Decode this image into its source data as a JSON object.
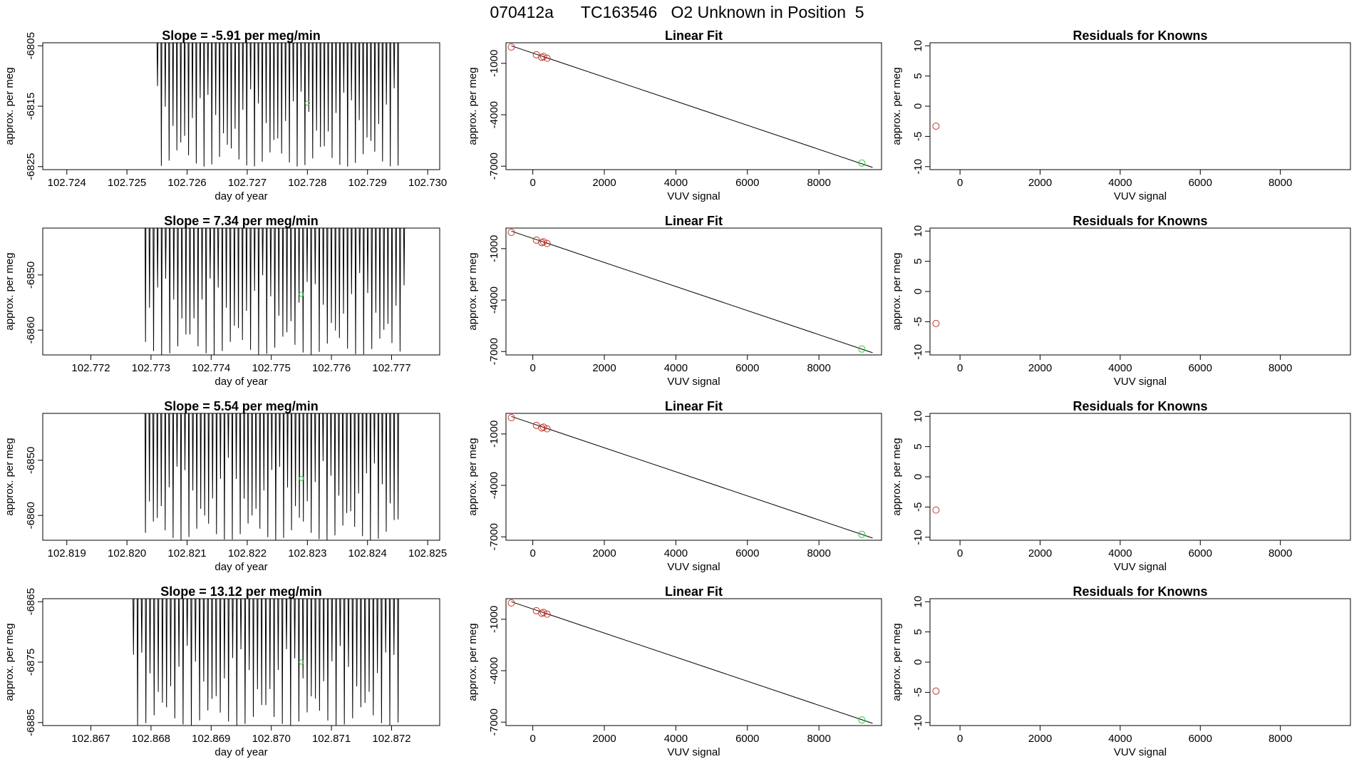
{
  "page": {
    "title_parts": [
      "070412a",
      "TC163546",
      "O2 Unknown in Position  5"
    ],
    "colors": {
      "axis": "#000000",
      "known": "#c0392b",
      "unknown": "#2ecc40",
      "trace": "#000000"
    }
  },
  "chart_data": [
    {
      "type": "line",
      "row": 0,
      "panel": "time-series",
      "title_prefix": "Slope = ",
      "slope": "-5.91",
      "title_suffix": " per meg/min",
      "xlabel": "day of year",
      "ylabel": "approx. per meg",
      "xlim": [
        102.7236,
        102.7302
      ],
      "ylim": [
        -6825.5,
        -6804.5
      ],
      "xticks": [
        "102.724",
        "102.725",
        "102.726",
        "102.727",
        "102.728",
        "102.729",
        "102.730"
      ],
      "yticks": [
        "-6805",
        "-6815",
        "-6825"
      ],
      "trace_start": 102.7255,
      "trace_end": 102.7295,
      "trace_cycles": 62,
      "trace_ymin": -6825,
      "trace_ymax": -6804.5,
      "marker": {
        "x": 102.728,
        "y": -6814.5
      }
    },
    {
      "type": "scatter",
      "row": 0,
      "panel": "linear-fit",
      "title": "Linear Fit",
      "xlabel": "VUV signal",
      "ylabel": "approx. per meg",
      "xlim": [
        -750,
        9750
      ],
      "ylim": [
        -7200,
        200
      ],
      "xticks": [
        "0",
        "2000",
        "4000",
        "6000",
        "8000"
      ],
      "yticks": [
        "-1000",
        "-4000",
        "-7000"
      ],
      "known_points": {
        "x": [
          -600,
          100,
          250,
          300,
          400
        ],
        "y": [
          -50,
          -500,
          -650,
          -600,
          -700
        ]
      },
      "unknown_point": {
        "x": 9200,
        "y": -6814
      },
      "fit_line": {
        "x": [
          -600,
          9500
        ],
        "y": [
          20,
          -7070
        ]
      }
    },
    {
      "type": "scatter",
      "row": 0,
      "panel": "residuals",
      "title": "Residuals for Knowns",
      "xlabel": "VUV signal",
      "ylabel": "approx. per meg",
      "xlim": [
        -750,
        9750
      ],
      "ylim": [
        -10.5,
        10.5
      ],
      "xticks": [
        "0",
        "2000",
        "4000",
        "6000",
        "8000"
      ],
      "yticks": [
        "10",
        "5",
        "0",
        "-5",
        "-10"
      ],
      "points": {
        "x": [
          -600
        ],
        "y": [
          -3.3
        ]
      }
    },
    {
      "type": "line",
      "row": 1,
      "panel": "time-series",
      "title_prefix": "Slope = ",
      "slope": "7.34",
      "title_suffix": " per meg/min",
      "xlabel": "day of year",
      "ylabel": "approx. per meg",
      "xlim": [
        102.7712,
        102.7778
      ],
      "ylim": [
        -6864.5,
        -6841.5
      ],
      "xticks": [
        "102.772",
        "102.773",
        "102.774",
        "102.775",
        "102.776",
        "102.777"
      ],
      "yticks": [
        "-6850",
        "-6860"
      ],
      "trace_start": 102.7729,
      "trace_end": 102.7772,
      "trace_cycles": 64,
      "trace_ymin": -6864.5,
      "trace_ymax": -6841.5,
      "marker": {
        "x": 102.7755,
        "y": -6853.5
      }
    },
    {
      "type": "scatter",
      "row": 1,
      "panel": "linear-fit",
      "title": "Linear Fit",
      "xlabel": "VUV signal",
      "ylabel": "approx. per meg",
      "xlim": [
        -750,
        9750
      ],
      "ylim": [
        -7200,
        200
      ],
      "xticks": [
        "0",
        "2000",
        "4000",
        "6000",
        "8000"
      ],
      "yticks": [
        "-1000",
        "-4000",
        "-7000"
      ],
      "known_points": {
        "x": [
          -600,
          100,
          250,
          300,
          400
        ],
        "y": [
          -50,
          -500,
          -650,
          -600,
          -700
        ]
      },
      "unknown_point": {
        "x": 9200,
        "y": -6853
      },
      "fit_line": {
        "x": [
          -600,
          9500
        ],
        "y": [
          20,
          -7070
        ]
      }
    },
    {
      "type": "scatter",
      "row": 1,
      "panel": "residuals",
      "title": "Residuals for Knowns",
      "xlabel": "VUV signal",
      "ylabel": "approx. per meg",
      "xlim": [
        -750,
        9750
      ],
      "ylim": [
        -10.5,
        10.5
      ],
      "xticks": [
        "0",
        "2000",
        "4000",
        "6000",
        "8000"
      ],
      "yticks": [
        "10",
        "5",
        "0",
        "-5",
        "-10"
      ],
      "points": {
        "x": [
          -600
        ],
        "y": [
          -5.3
        ]
      }
    },
    {
      "type": "line",
      "row": 2,
      "panel": "time-series",
      "title_prefix": "Slope = ",
      "slope": "5.54",
      "title_suffix": " per meg/min",
      "xlabel": "day of year",
      "ylabel": "approx. per meg",
      "xlim": [
        102.8186,
        102.8252
      ],
      "ylim": [
        -6864.5,
        -6841.5
      ],
      "xticks": [
        "102.819",
        "102.820",
        "102.821",
        "102.822",
        "102.823",
        "102.824",
        "102.825"
      ],
      "yticks": [
        "-6850",
        "-6860"
      ],
      "trace_start": 102.8203,
      "trace_end": 102.8245,
      "trace_cycles": 64,
      "trace_ymin": -6864.5,
      "trace_ymax": -6841.5,
      "marker": {
        "x": 102.8229,
        "y": -6853.3
      }
    },
    {
      "type": "scatter",
      "row": 2,
      "panel": "linear-fit",
      "title": "Linear Fit",
      "xlabel": "VUV signal",
      "ylabel": "approx. per meg",
      "xlim": [
        -750,
        9750
      ],
      "ylim": [
        -7200,
        200
      ],
      "xticks": [
        "0",
        "2000",
        "4000",
        "6000",
        "8000"
      ],
      "yticks": [
        "-1000",
        "-4000",
        "-7000"
      ],
      "known_points": {
        "x": [
          -600,
          100,
          250,
          300,
          400
        ],
        "y": [
          -50,
          -500,
          -650,
          -600,
          -700
        ]
      },
      "unknown_point": {
        "x": 9200,
        "y": -6853
      },
      "fit_line": {
        "x": [
          -600,
          9500
        ],
        "y": [
          20,
          -7070
        ]
      }
    },
    {
      "type": "scatter",
      "row": 2,
      "panel": "residuals",
      "title": "Residuals for Knowns",
      "xlabel": "VUV signal",
      "ylabel": "approx. per meg",
      "xlim": [
        -750,
        9750
      ],
      "ylim": [
        -10.5,
        10.5
      ],
      "xticks": [
        "0",
        "2000",
        "4000",
        "6000",
        "8000"
      ],
      "yticks": [
        "10",
        "5",
        "0",
        "-5",
        "-10"
      ],
      "points": {
        "x": [
          -600
        ],
        "y": [
          -5.5
        ]
      }
    },
    {
      "type": "line",
      "row": 3,
      "panel": "time-series",
      "title_prefix": "Slope = ",
      "slope": "13.12",
      "title_suffix": " per meg/min",
      "xlabel": "day of year",
      "ylabel": "approx. per meg",
      "xlim": [
        102.8662,
        102.8728
      ],
      "ylim": [
        -6885.5,
        -6864.5
      ],
      "xticks": [
        "102.867",
        "102.868",
        "102.869",
        "102.870",
        "102.871",
        "102.872"
      ],
      "yticks": [
        "-6865",
        "-6875",
        "-6885"
      ],
      "trace_start": 102.8677,
      "trace_end": 102.8721,
      "trace_cycles": 64,
      "trace_ymin": -6885.5,
      "trace_ymax": -6864.5,
      "marker": {
        "x": 102.8705,
        "y": -6875
      }
    },
    {
      "type": "scatter",
      "row": 3,
      "panel": "linear-fit",
      "title": "Linear Fit",
      "xlabel": "VUV signal",
      "ylabel": "approx. per meg",
      "xlim": [
        -750,
        9750
      ],
      "ylim": [
        -7200,
        200
      ],
      "xticks": [
        "0",
        "2000",
        "4000",
        "6000",
        "8000"
      ],
      "yticks": [
        "-1000",
        "-4000",
        "-7000"
      ],
      "known_points": {
        "x": [
          -600,
          100,
          250,
          300,
          400
        ],
        "y": [
          -50,
          -500,
          -650,
          -600,
          -700
        ]
      },
      "unknown_point": {
        "x": 9200,
        "y": -6875
      },
      "fit_line": {
        "x": [
          -600,
          9500
        ],
        "y": [
          20,
          -7070
        ]
      }
    },
    {
      "type": "scatter",
      "row": 3,
      "panel": "residuals",
      "title": "Residuals for Knowns",
      "xlabel": "VUV signal",
      "ylabel": "approx. per meg",
      "xlim": [
        -750,
        9750
      ],
      "ylim": [
        -10.5,
        10.5
      ],
      "xticks": [
        "0",
        "2000",
        "4000",
        "6000",
        "8000"
      ],
      "yticks": [
        "10",
        "5",
        "0",
        "-5",
        "-10"
      ],
      "points": {
        "x": [
          -600
        ],
        "y": [
          -4.8
        ]
      }
    }
  ]
}
